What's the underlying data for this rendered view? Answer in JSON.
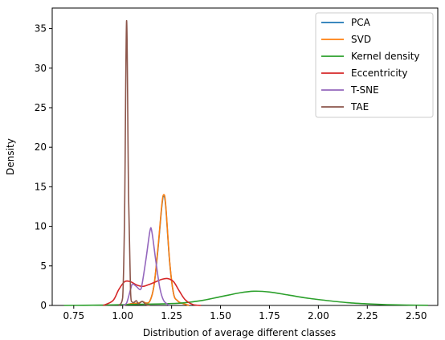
{
  "chart_data": {
    "type": "line",
    "title": "",
    "xlabel": "Distribution of average different classes",
    "ylabel": "Density",
    "xlim": [
      0.64,
      2.61
    ],
    "ylim": [
      0,
      37.6
    ],
    "x_ticks": [
      "0.75",
      "1.00",
      "1.25",
      "1.50",
      "1.75",
      "2.00",
      "2.25",
      "2.50"
    ],
    "y_ticks": [
      "0",
      "5",
      "10",
      "15",
      "20",
      "25",
      "30",
      "35"
    ],
    "grid": false,
    "legend_position": "top-right",
    "series": [
      {
        "name": "PCA",
        "color": "#1f77b4",
        "points": [
          [
            1.0,
            0
          ],
          [
            1.04,
            0.2
          ],
          [
            1.08,
            0.3
          ],
          [
            1.1,
            0.5
          ],
          [
            1.12,
            0.3
          ],
          [
            1.14,
            0.6
          ],
          [
            1.16,
            2.5
          ],
          [
            1.18,
            7.0
          ],
          [
            1.2,
            12.5
          ],
          [
            1.21,
            13.8
          ],
          [
            1.22,
            12.5
          ],
          [
            1.24,
            5.5
          ],
          [
            1.26,
            1.5
          ],
          [
            1.28,
            0.6
          ],
          [
            1.3,
            0.3
          ],
          [
            1.34,
            0
          ]
        ]
      },
      {
        "name": "SVD",
        "color": "#ff7f0e",
        "points": [
          [
            1.0,
            0
          ],
          [
            1.04,
            0.2
          ],
          [
            1.08,
            0.3
          ],
          [
            1.1,
            0.5
          ],
          [
            1.12,
            0.3
          ],
          [
            1.14,
            0.6
          ],
          [
            1.16,
            2.5
          ],
          [
            1.18,
            7.2
          ],
          [
            1.2,
            12.7
          ],
          [
            1.21,
            14.0
          ],
          [
            1.22,
            12.7
          ],
          [
            1.24,
            5.6
          ],
          [
            1.26,
            1.5
          ],
          [
            1.28,
            0.6
          ],
          [
            1.3,
            0.3
          ],
          [
            1.34,
            0
          ]
        ]
      },
      {
        "name": "Kernel density",
        "color": "#2ca02c",
        "points": [
          [
            0.7,
            0
          ],
          [
            0.8,
            0.02
          ],
          [
            0.9,
            0.05
          ],
          [
            1.0,
            0.1
          ],
          [
            1.1,
            0.15
          ],
          [
            1.2,
            0.2
          ],
          [
            1.3,
            0.3
          ],
          [
            1.4,
            0.6
          ],
          [
            1.5,
            1.1
          ],
          [
            1.6,
            1.6
          ],
          [
            1.67,
            1.8
          ],
          [
            1.75,
            1.7
          ],
          [
            1.85,
            1.3
          ],
          [
            1.95,
            0.9
          ],
          [
            2.05,
            0.6
          ],
          [
            2.15,
            0.35
          ],
          [
            2.25,
            0.2
          ],
          [
            2.35,
            0.1
          ],
          [
            2.45,
            0.05
          ],
          [
            2.56,
            0.02
          ]
        ]
      },
      {
        "name": "Eccentricity",
        "color": "#d62728",
        "points": [
          [
            0.9,
            0
          ],
          [
            0.95,
            0.6
          ],
          [
            0.98,
            2.0
          ],
          [
            1.01,
            3.0
          ],
          [
            1.04,
            3.0
          ],
          [
            1.07,
            2.6
          ],
          [
            1.1,
            2.4
          ],
          [
            1.13,
            2.6
          ],
          [
            1.16,
            2.9
          ],
          [
            1.2,
            3.3
          ],
          [
            1.23,
            3.4
          ],
          [
            1.26,
            3.0
          ],
          [
            1.29,
            1.8
          ],
          [
            1.32,
            0.7
          ],
          [
            1.36,
            0.1
          ],
          [
            1.4,
            0
          ]
        ]
      },
      {
        "name": "T-SNE",
        "color": "#9467bd",
        "points": [
          [
            1.0,
            0
          ],
          [
            1.02,
            0.3
          ],
          [
            1.04,
            2.0
          ],
          [
            1.05,
            2.7
          ],
          [
            1.07,
            2.4
          ],
          [
            1.09,
            2.0
          ],
          [
            1.1,
            2.8
          ],
          [
            1.12,
            6.0
          ],
          [
            1.14,
            9.5
          ],
          [
            1.15,
            9.2
          ],
          [
            1.17,
            5.5
          ],
          [
            1.19,
            2.2
          ],
          [
            1.21,
            0.6
          ],
          [
            1.24,
            0
          ]
        ]
      },
      {
        "name": "TAE",
        "color": "#8c564b",
        "points": [
          [
            0.98,
            0
          ],
          [
            1.0,
            1.0
          ],
          [
            1.01,
            12.0
          ],
          [
            1.02,
            36.0
          ],
          [
            1.03,
            14.0
          ],
          [
            1.04,
            2.0
          ],
          [
            1.05,
            0.4
          ],
          [
            1.07,
            0.6
          ],
          [
            1.08,
            0.2
          ],
          [
            1.1,
            0.5
          ],
          [
            1.12,
            0.1
          ],
          [
            1.14,
            0
          ]
        ]
      }
    ]
  }
}
